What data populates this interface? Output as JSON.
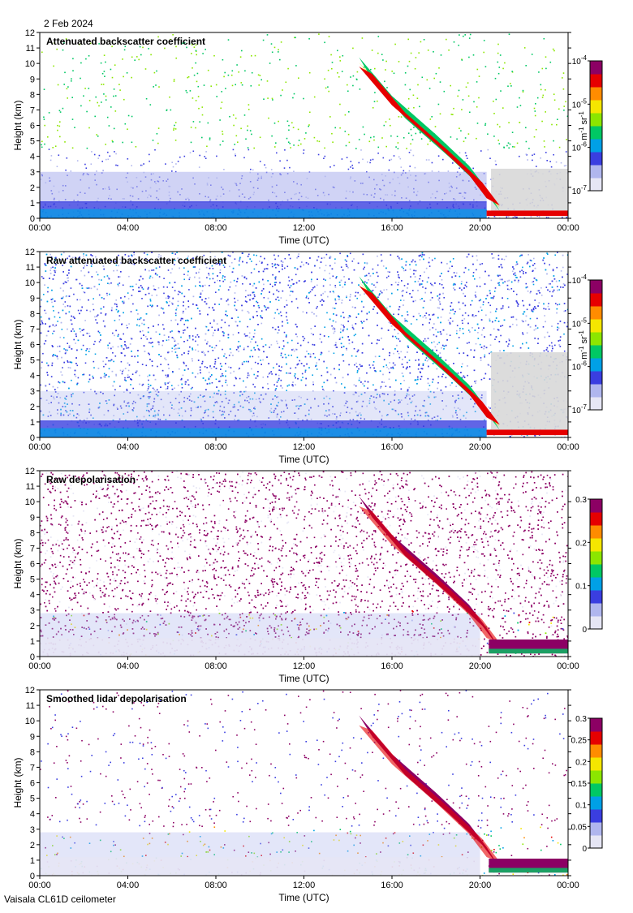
{
  "header": {
    "date": "2 Feb 2024",
    "instrument": "Vaisala CL61D ceilometer"
  },
  "chart_data": [
    {
      "type": "heatmap",
      "title": "Attenuated backscatter coefficient",
      "xlabel": "Time (UTC)",
      "ylabel": "Height (km)",
      "x_ticks": [
        "00:00",
        "04:00",
        "08:00",
        "12:00",
        "16:00",
        "20:00",
        "00:00"
      ],
      "y_ticks": [
        0,
        1,
        2,
        3,
        4,
        5,
        6,
        7,
        8,
        9,
        10,
        11,
        12
      ],
      "xlim_hours": [
        0,
        24
      ],
      "ylim_km": [
        0,
        12
      ],
      "colorbar": {
        "scale": "log",
        "range": [
          1e-07,
          0.0001
        ],
        "tick_labels": [
          "10-7",
          "10-6",
          "10-5",
          "10-4"
        ],
        "label": "m-1 sr-1"
      },
      "features": {
        "boundary_layer_top_km": 1.0,
        "falling_cloud_band": [
          {
            "time_h": 14.5,
            "height_km": 9.5
          },
          {
            "time_h": 16.0,
            "height_km": 7.0
          },
          {
            "time_h": 18.0,
            "height_km": 4.5
          },
          {
            "time_h": 19.5,
            "height_km": 2.5
          },
          {
            "time_h": 20.3,
            "height_km": 1.0
          }
        ],
        "low_cloud_after_20h_km": 0.3
      }
    },
    {
      "type": "heatmap",
      "title": "Raw attenuated backscatter coefficient",
      "xlabel": "Time (UTC)",
      "ylabel": "Height (km)",
      "x_ticks": [
        "00:00",
        "04:00",
        "08:00",
        "12:00",
        "16:00",
        "20:00",
        "00:00"
      ],
      "y_ticks": [
        0,
        1,
        2,
        3,
        4,
        5,
        6,
        7,
        8,
        9,
        10,
        11,
        12
      ],
      "xlim_hours": [
        0,
        24
      ],
      "ylim_km": [
        0,
        12
      ],
      "colorbar": {
        "scale": "log",
        "range": [
          1e-07,
          0.0001
        ],
        "tick_labels": [
          "10-7",
          "10-6",
          "10-5",
          "10-4"
        ],
        "label": "m-1 sr-1"
      }
    },
    {
      "type": "heatmap",
      "title": "Raw depolarisation",
      "xlabel": "Time (UTC)",
      "ylabel": "Height (km)",
      "x_ticks": [
        "00:00",
        "04:00",
        "08:00",
        "12:00",
        "16:00",
        "20:00",
        "00:00"
      ],
      "y_ticks": [
        0,
        1,
        2,
        3,
        4,
        5,
        6,
        7,
        8,
        9,
        10,
        11,
        12
      ],
      "xlim_hours": [
        0,
        24
      ],
      "ylim_km": [
        0,
        12
      ],
      "colorbar": {
        "scale": "linear",
        "range": [
          0,
          0.3
        ],
        "tick_labels": [
          "0",
          "0.1",
          "0.2",
          "0.3"
        ],
        "label": ""
      }
    },
    {
      "type": "heatmap",
      "title": "Smoothed lidar depolarisation",
      "xlabel": "Time (UTC)",
      "ylabel": "Height (km)",
      "x_ticks": [
        "00:00",
        "04:00",
        "08:00",
        "12:00",
        "16:00",
        "20:00",
        "00:00"
      ],
      "y_ticks": [
        0,
        1,
        2,
        3,
        4,
        5,
        6,
        7,
        8,
        9,
        10,
        11,
        12
      ],
      "xlim_hours": [
        0,
        24
      ],
      "ylim_km": [
        0,
        12
      ],
      "colorbar": {
        "scale": "linear",
        "range": [
          0,
          0.3
        ],
        "tick_labels": [
          "0",
          "0.05",
          "0.1",
          "0.15",
          "0.2",
          "0.25",
          "0.3"
        ],
        "label": ""
      }
    }
  ]
}
